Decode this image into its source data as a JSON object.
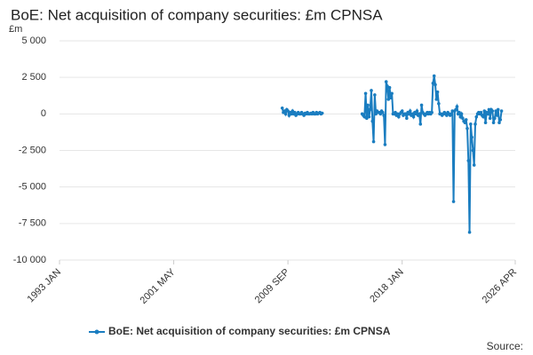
{
  "chart_data": {
    "type": "line",
    "title": "BoE: Net acquisition of company securities: £m CPNSA",
    "y_label": "£m",
    "source": "Source:",
    "x": [
      "2009-04",
      "2009-05",
      "2009-06",
      "2009-07",
      "2009-08",
      "2009-09",
      "2009-10",
      "2009-11",
      "2009-12",
      "2010-01",
      "2010-02",
      "2010-03",
      "2010-04",
      "2010-05",
      "2010-06",
      "2010-07",
      "2010-08",
      "2010-09",
      "2010-10",
      "2010-11",
      "2010-12",
      "2011-01",
      "2011-02",
      "2011-03",
      "2011-04",
      "2011-05",
      "2011-06",
      "2011-07",
      "2011-08",
      "2011-09",
      "2011-10",
      "2011-11",
      "2011-12",
      "2012-01",
      "2012-02",
      "2012-03",
      "2013-06",
      "2015-02",
      "2015-03",
      "2015-04",
      "2015-05",
      "2015-06",
      "2015-07",
      "2015-08",
      "2015-09",
      "2015-10",
      "2015-11",
      "2015-12",
      "2016-01",
      "2016-02",
      "2016-03",
      "2016-04",
      "2016-05",
      "2016-06",
      "2016-07",
      "2016-08",
      "2016-09",
      "2016-10",
      "2016-11",
      "2016-12",
      "2017-01",
      "2017-02",
      "2017-03",
      "2017-04",
      "2017-05",
      "2017-06",
      "2017-07",
      "2017-08",
      "2017-09",
      "2017-10",
      "2017-11",
      "2017-12",
      "2018-01",
      "2018-02",
      "2018-03",
      "2018-04",
      "2018-05",
      "2018-06",
      "2018-07",
      "2018-08",
      "2018-09",
      "2018-10",
      "2018-11",
      "2018-12",
      "2019-01",
      "2019-02",
      "2019-03",
      "2019-04",
      "2019-05",
      "2019-06",
      "2019-07",
      "2019-08",
      "2019-09",
      "2019-10",
      "2019-11",
      "2019-12",
      "2020-01",
      "2020-02",
      "2020-03",
      "2020-04",
      "2020-05",
      "2020-06",
      "2020-07",
      "2020-08",
      "2020-09",
      "2020-10",
      "2020-11",
      "2020-12",
      "2021-01",
      "2021-02",
      "2021-03",
      "2021-04",
      "2021-05",
      "2021-06",
      "2021-07",
      "2021-08",
      "2021-09",
      "2021-10",
      "2021-11",
      "2021-12",
      "2022-01",
      "2022-02",
      "2022-03",
      "2022-04",
      "2022-05",
      "2022-06",
      "2022-07",
      "2022-08",
      "2022-09",
      "2022-10",
      "2022-11",
      "2022-12",
      "2023-01",
      "2023-02",
      "2023-03",
      "2023-04",
      "2023-05",
      "2023-06",
      "2023-07",
      "2023-08",
      "2023-09",
      "2023-10",
      "2023-11",
      "2023-12",
      "2024-01",
      "2024-02",
      "2024-03",
      "2024-04",
      "2024-05",
      "2024-06",
      "2024-07",
      "2024-08",
      "2024-09",
      "2024-10",
      "2024-11",
      "2024-12",
      "2025-01",
      "2025-02",
      "2025-03",
      "2025-04"
    ],
    "series": [
      {
        "name": "BoE: Net acquisition of company securities: £m CPNSA",
        "color": "#1a7dc0",
        "values": [
          400,
          100,
          200,
          0,
          300,
          200,
          -100,
          100,
          0,
          200,
          0,
          100,
          -100,
          0,
          100,
          0,
          0,
          100,
          0,
          -100,
          50,
          0,
          100,
          0,
          0,
          50,
          0,
          100,
          0,
          0,
          100,
          0,
          50,
          100,
          0,
          50,
          null,
          0,
          -100,
          -200,
          1400,
          -300,
          600,
          -200,
          300,
          1600,
          -500,
          -1900,
          1300,
          0,
          200,
          100,
          100,
          0,
          200,
          100,
          -100,
          -2100,
          2200,
          1900,
          1000,
          1800,
          1100,
          1400,
          0,
          0,
          100,
          -100,
          0,
          -200,
          0,
          100,
          200,
          -100,
          0,
          0,
          -300,
          100,
          0,
          200,
          -100,
          0,
          -200,
          100,
          0,
          200,
          -100,
          0,
          -700,
          600,
          100,
          0,
          -100,
          0,
          100,
          0,
          100,
          0,
          100,
          2100,
          2600,
          2000,
          1000,
          1500,
          700,
          0,
          0,
          -100,
          0,
          100,
          0,
          -100,
          100,
          0,
          -100,
          0,
          200,
          -6000,
          200,
          300,
          500,
          0,
          100,
          -200,
          0,
          -300,
          -500,
          -600,
          -400,
          -1000,
          -3200,
          -8100,
          -700,
          -1600,
          -2500,
          -3500,
          -700,
          -200,
          0,
          100,
          0,
          100,
          -100,
          -200,
          200,
          -600,
          100,
          0,
          300,
          -300,
          300,
          200,
          -600,
          -300,
          200,
          -100,
          300,
          -600,
          -400,
          200
        ]
      }
    ],
    "xlim": [
      "1993-01",
      "2026-04"
    ],
    "xticks": [
      {
        "value": "1993-01",
        "label": "1993 JAN"
      },
      {
        "value": "2001-05",
        "label": "2001 MAY"
      },
      {
        "value": "2009-09",
        "label": "2009 SEP"
      },
      {
        "value": "2018-01",
        "label": "2018 JAN"
      },
      {
        "value": "2026-04",
        "label": "2026 APR"
      }
    ],
    "ylim": [
      -10000,
      5000
    ],
    "yticks": [
      {
        "value": 5000,
        "label": "5 000"
      },
      {
        "value": 2500,
        "label": "2 500"
      },
      0,
      {
        "value": -2500,
        "label": "-2 500"
      },
      {
        "value": -5000,
        "label": "-5 000"
      },
      {
        "value": -7500,
        "label": "-7 500"
      },
      {
        "value": -10000,
        "label": "-10 000"
      }
    ],
    "grid": true
  }
}
